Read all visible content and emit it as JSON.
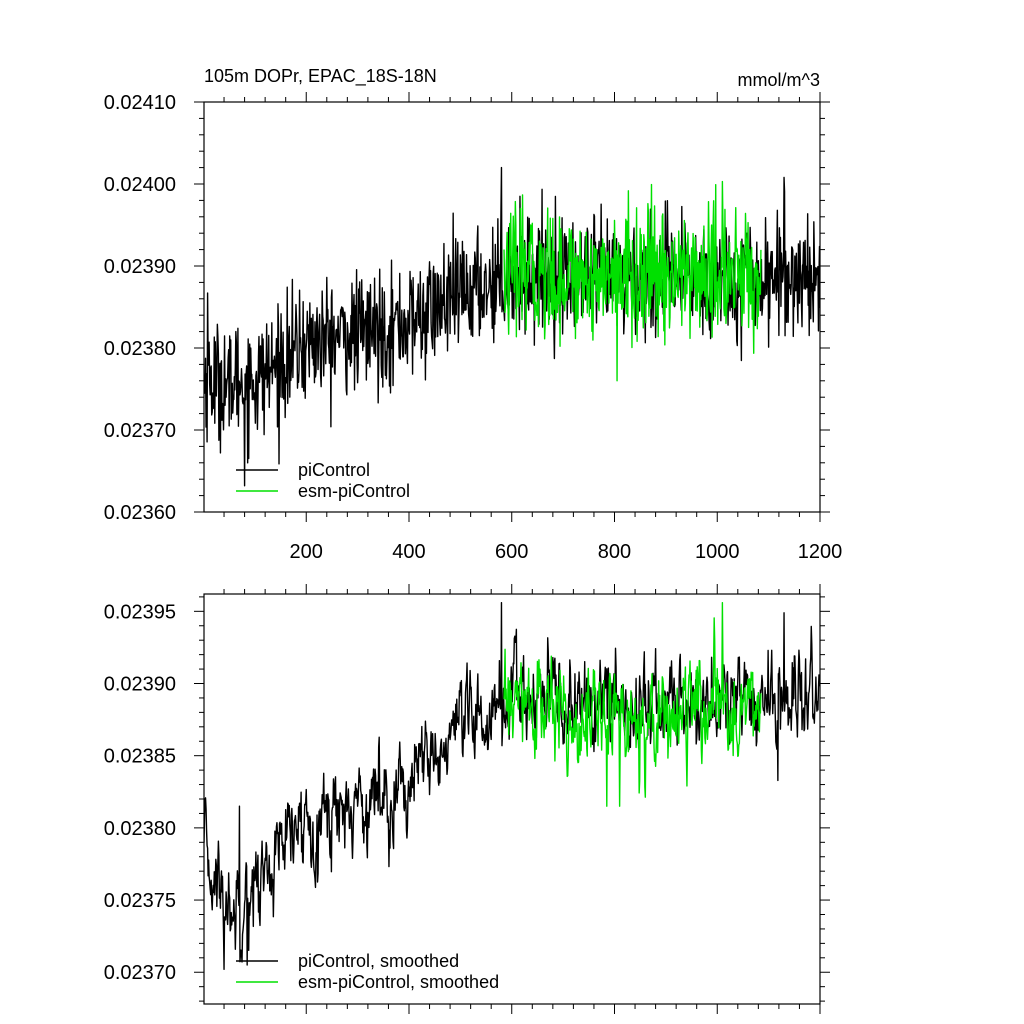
{
  "figure": {
    "title": "105m DOPr, EPAC_18S-18N",
    "units": "mmol/m^3"
  },
  "colors": {
    "piControl": "#000000",
    "esm_piControl": "#00e000"
  },
  "chart_data": [
    {
      "type": "line",
      "panel": "top",
      "title": "105m DOPr, EPAC_18S-18N",
      "units": "mmol/m^3",
      "xlim": [
        1,
        1200
      ],
      "ylim": [
        0.0236,
        0.0241
      ],
      "xticks": [
        200,
        400,
        600,
        800,
        1000,
        1200
      ],
      "xtick_labels": [
        "200",
        "400",
        "600",
        "800",
        "1000",
        "1200"
      ],
      "yticks": [
        0.0236,
        0.0237,
        0.0238,
        0.0239,
        0.024,
        0.0241
      ],
      "ytick_labels": [
        "0.02360",
        "0.02370",
        "0.02380",
        "0.02390",
        "0.02400",
        "0.02410"
      ],
      "legend": [
        "piControl",
        "esm-piControl"
      ],
      "legend_position": "bottom-left",
      "series": [
        {
          "name": "piControl",
          "color": "#000000",
          "x_start": 1,
          "x_end": 1200,
          "segments": [
            {
              "x": 1,
              "y": 0.02376
            },
            {
              "x": 100,
              "y": 0.02376
            },
            {
              "x": 200,
              "y": 0.023805
            },
            {
              "x": 400,
              "y": 0.02383
            },
            {
              "x": 500,
              "y": 0.023865
            },
            {
              "x": 600,
              "y": 0.02389
            },
            {
              "x": 800,
              "y": 0.023885
            },
            {
              "x": 1000,
              "y": 0.023885
            },
            {
              "x": 1200,
              "y": 0.02389
            }
          ],
          "noise_sd": 3.5e-05,
          "extremes": [
            {
              "x": 8,
              "y": 0.023867
            },
            {
              "x": 50,
              "y": 0.023705
            },
            {
              "x": 80,
              "y": 0.023632
            },
            {
              "x": 580,
              "y": 0.02402
            },
            {
              "x": 1130,
              "y": 0.024008
            }
          ]
        },
        {
          "name": "esm-piControl",
          "color": "#00e000",
          "x_start": 585,
          "x_end": 1085,
          "segments": [
            {
              "x": 585,
              "y": 0.02389
            },
            {
              "x": 1085,
              "y": 0.023888
            }
          ],
          "noise_sd": 3.8e-05,
          "extremes": [
            {
              "x": 805,
              "y": 0.02376
            },
            {
              "x": 1010,
              "y": 0.024003
            }
          ]
        }
      ]
    },
    {
      "type": "line",
      "panel": "bottom",
      "title": "",
      "xlim": [
        1,
        1200
      ],
      "ylim": [
        0.023678,
        0.023962
      ],
      "xticks": [
        200,
        400,
        600,
        800,
        1000,
        1200
      ],
      "yticks": [
        0.0237,
        0.02375,
        0.0238,
        0.02385,
        0.0239,
        0.02395
      ],
      "ytick_labels": [
        "0.02370",
        "0.02375",
        "0.02380",
        "0.02385",
        "0.02390",
        "0.02395"
      ],
      "legend": [
        "piControl, smoothed",
        "esm-piControl, smoothed"
      ],
      "legend_position": "bottom-left",
      "series": [
        {
          "name": "piControl, smoothed",
          "color": "#000000",
          "x_start": 1,
          "x_end": 1200,
          "segments": [
            {
              "x": 1,
              "y": 0.02378
            },
            {
              "x": 50,
              "y": 0.023745
            },
            {
              "x": 100,
              "y": 0.02376
            },
            {
              "x": 200,
              "y": 0.023805
            },
            {
              "x": 400,
              "y": 0.02383
            },
            {
              "x": 500,
              "y": 0.023865
            },
            {
              "x": 600,
              "y": 0.02389
            },
            {
              "x": 800,
              "y": 0.023885
            },
            {
              "x": 1000,
              "y": 0.023885
            },
            {
              "x": 1200,
              "y": 0.02389
            }
          ],
          "noise_sd": 1.8e-05,
          "extremes": [
            {
              "x": 3,
              "y": 0.02382
            },
            {
              "x": 40,
              "y": 0.023702
            },
            {
              "x": 70,
              "y": 0.023815
            },
            {
              "x": 85,
              "y": 0.023705
            },
            {
              "x": 580,
              "y": 0.023956
            },
            {
              "x": 1130,
              "y": 0.023949
            }
          ]
        },
        {
          "name": "esm-piControl, smoothed",
          "color": "#00e000",
          "x_start": 585,
          "x_end": 1085,
          "segments": [
            {
              "x": 585,
              "y": 0.023885
            },
            {
              "x": 800,
              "y": 0.023875
            },
            {
              "x": 1085,
              "y": 0.023885
            }
          ],
          "noise_sd": 1.9e-05,
          "extremes": [
            {
              "x": 785,
              "y": 0.023815
            },
            {
              "x": 810,
              "y": 0.023815
            },
            {
              "x": 1010,
              "y": 0.023956
            }
          ]
        }
      ]
    }
  ]
}
